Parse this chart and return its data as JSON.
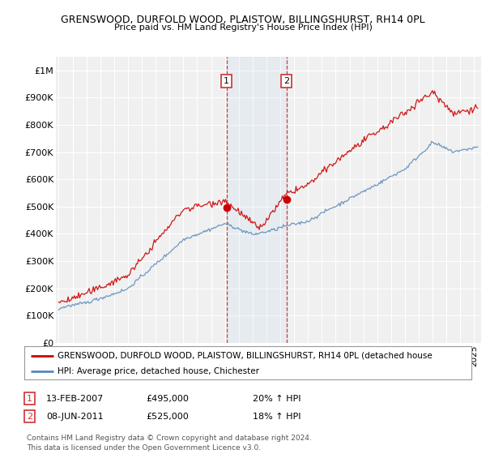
{
  "title": "GRENSWOOD, DURFOLD WOOD, PLAISTOW, BILLINGSHURST, RH14 0PL",
  "subtitle": "Price paid vs. HM Land Registry's House Price Index (HPI)",
  "ylabel_ticks": [
    "£0",
    "£100K",
    "£200K",
    "£300K",
    "£400K",
    "£500K",
    "£600K",
    "£700K",
    "£800K",
    "£900K",
    "£1M"
  ],
  "ytick_values": [
    0,
    100000,
    200000,
    300000,
    400000,
    500000,
    600000,
    700000,
    800000,
    900000,
    1000000
  ],
  "ylim": [
    0,
    1050000
  ],
  "xlim_start": 1994.8,
  "xlim_end": 2025.5,
  "red_line_color": "#cc0000",
  "blue_line_color": "#5588bb",
  "sale1_x": 2007.12,
  "sale1_y": 495000,
  "sale2_x": 2011.44,
  "sale2_y": 525000,
  "sale1_date": "13-FEB-2007",
  "sale1_price": "£495,000",
  "sale1_hpi": "20% ↑ HPI",
  "sale2_date": "08-JUN-2011",
  "sale2_price": "£525,000",
  "sale2_hpi": "18% ↑ HPI",
  "legend_red_label": "GRENSWOOD, DURFOLD WOOD, PLAISTOW, BILLINGSHURST, RH14 0PL (detached house",
  "legend_blue_label": "HPI: Average price, detached house, Chichester",
  "footer": "Contains HM Land Registry data © Crown copyright and database right 2024.\nThis data is licensed under the Open Government Licence v3.0.",
  "background_color": "#ffffff",
  "plot_bg_color": "#f0f0f0"
}
